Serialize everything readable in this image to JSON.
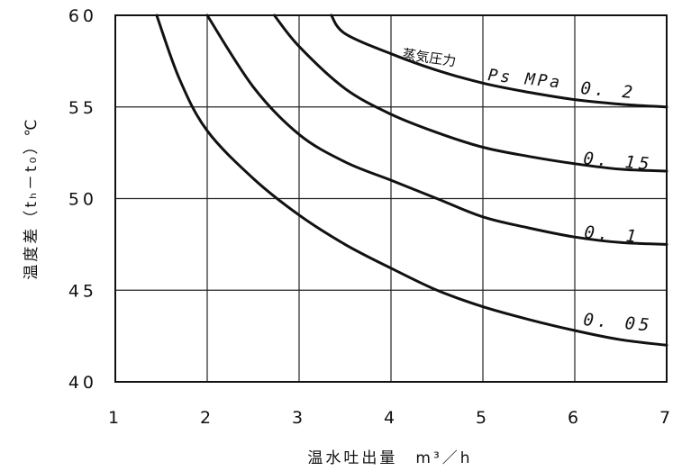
{
  "chart_data": {
    "type": "line",
    "xlabel": "温水吐出量　m³／h",
    "ylabel": "温度差（tₕ－t₀）℃",
    "xlim": [
      1,
      7
    ],
    "ylim": [
      40,
      60
    ],
    "xticks": [
      "1",
      "2",
      "3",
      "4",
      "5",
      "6",
      "7"
    ],
    "yticks": [
      "40",
      "45",
      "50",
      "55",
      "60"
    ],
    "grid": true,
    "legend_title": "蒸気圧力",
    "legend_unit": "Ps MPa",
    "series": [
      {
        "name": "0. 2",
        "x": [
          3.35,
          3.5,
          4.0,
          4.5,
          5.0,
          5.5,
          6.0,
          6.5,
          7.0
        ],
        "y": [
          60.0,
          59.0,
          57.9,
          57.0,
          56.3,
          55.8,
          55.4,
          55.15,
          55.0
        ]
      },
      {
        "name": "0. 15",
        "x": [
          2.73,
          3.0,
          3.5,
          4.0,
          4.5,
          5.0,
          5.5,
          6.0,
          6.5,
          7.0
        ],
        "y": [
          60.0,
          58.3,
          56.0,
          54.6,
          53.6,
          52.8,
          52.3,
          51.9,
          51.6,
          51.5
        ]
      },
      {
        "name": "0. 1",
        "x": [
          2.0,
          2.5,
          3.0,
          3.5,
          4.0,
          4.5,
          5.0,
          5.5,
          6.0,
          6.5,
          7.0
        ],
        "y": [
          60.0,
          56.1,
          53.5,
          52.0,
          51.0,
          50.0,
          49.0,
          48.4,
          47.9,
          47.6,
          47.5
        ]
      },
      {
        "name": "0. 05",
        "x": [
          1.45,
          1.7,
          2.0,
          2.5,
          3.0,
          3.5,
          4.0,
          4.5,
          5.0,
          5.5,
          6.0,
          6.5,
          7.0
        ],
        "y": [
          60.0,
          56.5,
          53.7,
          51.1,
          49.1,
          47.5,
          46.2,
          45.0,
          44.1,
          43.4,
          42.8,
          42.3,
          42.0
        ]
      }
    ]
  }
}
